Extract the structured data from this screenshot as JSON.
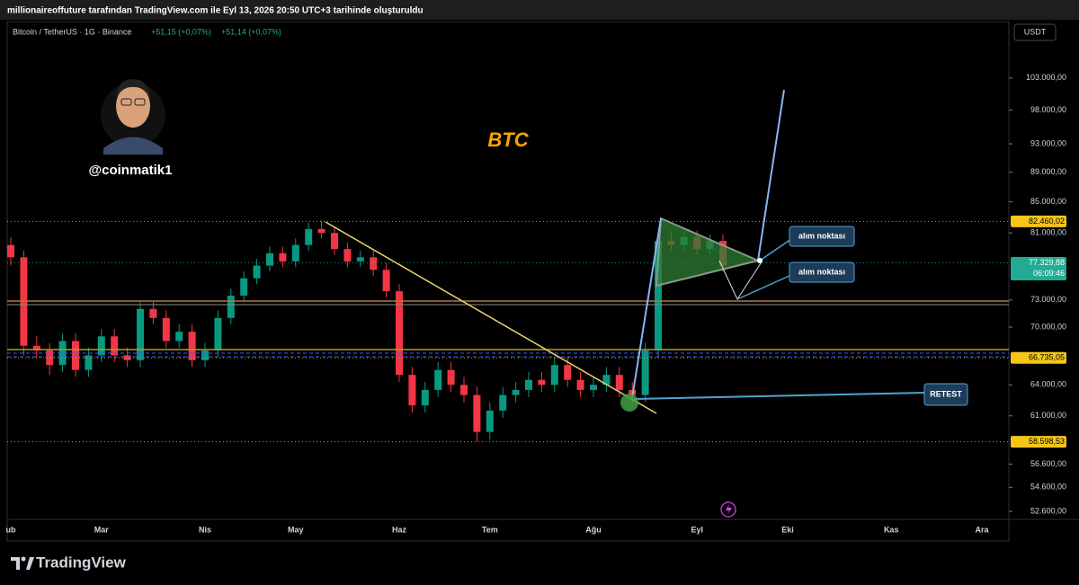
{
  "header": {
    "caption": "millionaireoffuture tarafından TradingView.com ile Eyl 13, 2026 20:50 UTC+3 tarihinde oluşturuldu",
    "symbol": "Bitcoin / TetherUS · 1G · Binance",
    "change_1": "+51,15 (+0,07%)",
    "change_2": "+51,14 (+0,07%)",
    "currency": "USDT"
  },
  "chart_data": {
    "type": "candlestick",
    "title": "BTC",
    "author": "@coinmatik1",
    "categories": [
      "ub",
      null,
      null,
      null,
      null,
      null,
      null,
      "Mar",
      null,
      null,
      null,
      null,
      null,
      null,
      null,
      "Nis",
      null,
      null,
      null,
      null,
      null,
      null,
      "May",
      null,
      null,
      null,
      null,
      null,
      null,
      null,
      "Haz",
      null,
      null,
      null,
      null,
      null,
      null,
      "Tem",
      null,
      null,
      null,
      null,
      null,
      null,
      null,
      "Ağu",
      null,
      null,
      null,
      null,
      null,
      null,
      null,
      "Eyl",
      null,
      null,
      null,
      null,
      null,
      null,
      "Eki",
      null,
      null,
      null,
      null,
      null,
      null,
      null,
      "Kas",
      null,
      null,
      null,
      null,
      null,
      null,
      "Ara",
      null,
      null
    ],
    "open": [
      79500,
      78000,
      68000,
      67500,
      66000,
      68500,
      65500,
      67000,
      69000,
      67000,
      66500,
      72000,
      71000,
      68500,
      69500,
      66500,
      67500,
      71000,
      73500,
      75500,
      77000,
      78500,
      77500,
      79500,
      81500,
      81000,
      79000,
      77500,
      78000,
      76500,
      74000,
      65000,
      62000,
      63500,
      65500,
      64000,
      63000,
      59500,
      61500,
      63000,
      63500,
      64500,
      64000,
      66000,
      64500,
      63500,
      64000,
      65000,
      63500,
      63000,
      67500,
      80000,
      79500,
      80500,
      79000,
      80000,
      null,
      null,
      null,
      null,
      null,
      null,
      null,
      null,
      null,
      null,
      null,
      null,
      null,
      null,
      null,
      null,
      null,
      null,
      null,
      null,
      null,
      null
    ],
    "high": [
      80500,
      78800,
      69000,
      68300,
      69300,
      69300,
      67800,
      69800,
      69800,
      67800,
      72800,
      72800,
      71800,
      70300,
      70300,
      68300,
      71800,
      74300,
      76300,
      77800,
      79300,
      79300,
      80300,
      82300,
      82500,
      81800,
      79800,
      78800,
      78800,
      77300,
      74800,
      65800,
      64300,
      66300,
      66300,
      64800,
      63800,
      62300,
      63800,
      64300,
      65300,
      65300,
      66800,
      66800,
      65300,
      64800,
      65800,
      65800,
      64300,
      68300,
      80800,
      81300,
      81300,
      81300,
      80800,
      80800,
      null,
      null,
      null,
      null,
      null,
      null,
      null,
      null,
      null,
      null,
      null,
      null,
      null,
      null,
      null,
      null,
      null,
      null,
      null,
      null,
      null,
      null
    ],
    "low": [
      77000,
      67000,
      66800,
      65000,
      65300,
      64800,
      64800,
      66300,
      66300,
      65800,
      65800,
      70300,
      67800,
      67800,
      65800,
      65800,
      66800,
      70300,
      72800,
      74800,
      76300,
      76800,
      76800,
      78800,
      80300,
      78300,
      76800,
      76800,
      75800,
      73300,
      64300,
      61300,
      61300,
      62800,
      63300,
      62300,
      58600,
      58800,
      60800,
      62300,
      62800,
      63300,
      63300,
      63800,
      62800,
      62800,
      63300,
      62800,
      62300,
      62300,
      66800,
      78800,
      78800,
      78300,
      78300,
      76300,
      null,
      null,
      null,
      null,
      null,
      null,
      null,
      null,
      null,
      null,
      null,
      null,
      null,
      null,
      null,
      null,
      null,
      null,
      null,
      null,
      null,
      null
    ],
    "close": [
      78000,
      68000,
      67500,
      66000,
      68500,
      65500,
      67000,
      69000,
      67000,
      66500,
      72000,
      71000,
      68500,
      69500,
      66500,
      67500,
      71000,
      73500,
      75500,
      77000,
      78500,
      77500,
      79500,
      81500,
      81000,
      79000,
      77500,
      78000,
      76500,
      74000,
      65000,
      62000,
      63500,
      65500,
      64000,
      63000,
      59500,
      61500,
      63000,
      63500,
      64500,
      64000,
      66000,
      64500,
      63500,
      64000,
      65000,
      63500,
      63000,
      67500,
      80000,
      79500,
      80500,
      79000,
      80000,
      77000,
      null,
      null,
      null,
      null,
      null,
      null,
      null,
      null,
      null,
      null,
      null,
      null,
      null,
      null,
      null,
      null,
      null,
      null,
      null,
      null,
      null,
      null
    ],
    "up_color": "#089981",
    "down_color": "#f23645",
    "ylim": [
      51950,
      112260
    ],
    "log_scale": true,
    "grid": false,
    "yticks": [
      {
        "value": 103000,
        "label": "103.000,00"
      },
      {
        "value": 98000,
        "label": "98.000,00"
      },
      {
        "value": 93000,
        "label": "93.000,00"
      },
      {
        "value": 89000,
        "label": "89.000,00"
      },
      {
        "value": 85000,
        "label": "85.000,00"
      },
      {
        "value": 81000,
        "label": "81.000,00"
      },
      {
        "value": 73000,
        "label": "73.000,00"
      },
      {
        "value": 70000,
        "label": "70.000,00"
      },
      {
        "value": 64000,
        "label": "64.000,00"
      },
      {
        "value": 61000,
        "label": "61.000,00"
      },
      {
        "value": 56600,
        "label": "56.600,00"
      },
      {
        "value": 54600,
        "label": "54.600,00"
      },
      {
        "value": 52600,
        "label": "52.600,00"
      }
    ],
    "price_levels": [
      {
        "value": 82460.02,
        "label": "82.460,02",
        "color": "#f5c518"
      },
      {
        "value": 77329.88,
        "label": "77.329,88",
        "countdown": "06:09:46",
        "color": "#22ab94"
      },
      {
        "value": 66735.05,
        "label": "66.735,05",
        "color": "#f5c518"
      },
      {
        "value": 58598.53,
        "label": "58.598,53",
        "color": "#f5c518"
      }
    ],
    "annotations": [
      "alım noktası",
      "alım noktası",
      "RETEST"
    ]
  },
  "footer": {
    "brand": "TradingView"
  }
}
